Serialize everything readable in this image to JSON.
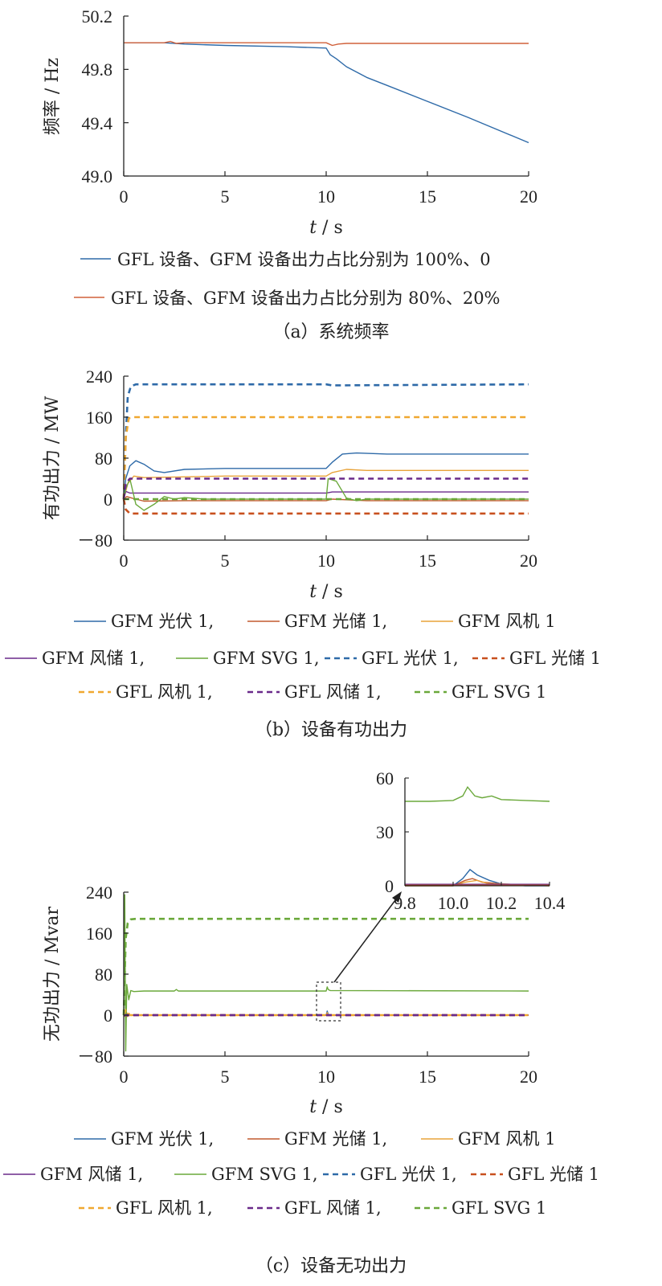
{
  "colors": {
    "gfm_pv": "#2e6aa8",
    "gfm_st": "#c25a2e",
    "gfm_wt": "#e8a33a",
    "gfm_ws": "#6a2a8a",
    "gfm_svg": "#6aa83a",
    "gfl_pv": "#2e6aa8",
    "gfl_st": "#c8501e",
    "gfl_wt": "#f0a830",
    "gfl_ws": "#6a2a8a",
    "gfl_svg": "#6aa83a",
    "fa_blue": "#2e6aa8",
    "fa_red": "#d0603a",
    "axis": "#222222"
  },
  "chart_data": [
    {
      "id": "a",
      "type": "line",
      "caption": "（a）系统频率",
      "xlabel_var": "t",
      "xlabel_unit": " / s",
      "ylabel": "频率 / Hz",
      "xlim": [
        0,
        20
      ],
      "ylim": [
        49.0,
        50.2
      ],
      "xticks": [
        "0",
        "5",
        "10",
        "15",
        "20"
      ],
      "yticks": [
        "49.0",
        "49.4",
        "49.8",
        "50.2"
      ],
      "series": [
        {
          "name": "GFL 设备、GFM 设备出力占比分别为 100%、0",
          "color_key": "fa_blue",
          "dash": false,
          "x": [
            0,
            2,
            3,
            5,
            8,
            10,
            10.2,
            10.5,
            11,
            12,
            13,
            15,
            17,
            20
          ],
          "y": [
            50.0,
            50.0,
            49.99,
            49.98,
            49.97,
            49.96,
            49.91,
            49.88,
            49.82,
            49.74,
            49.68,
            49.56,
            49.44,
            49.25
          ]
        },
        {
          "name": "GFL 设备、GFM 设备出力占比分别为 80%、20%",
          "color_key": "fa_red",
          "dash": false,
          "x": [
            0,
            2,
            2.3,
            2.6,
            3,
            5,
            10,
            10.3,
            10.6,
            11,
            12,
            15,
            20
          ],
          "y": [
            50.0,
            50.0,
            50.01,
            49.995,
            50.0,
            50.0,
            50.0,
            49.98,
            49.99,
            49.995,
            49.995,
            49.995,
            49.995
          ]
        }
      ]
    },
    {
      "id": "b",
      "type": "line",
      "caption": "（b）设备有功出力",
      "xlabel_var": "t",
      "xlabel_unit": " / s",
      "ylabel": "有功出力 / MW",
      "xlim": [
        0,
        20
      ],
      "ylim": [
        -80,
        240
      ],
      "xticks": [
        "0",
        "5",
        "10",
        "15",
        "20"
      ],
      "yticks": [
        "－80",
        "0",
        "80",
        "160",
        "240"
      ],
      "series": [
        {
          "name": "GFM 光伏 1",
          "color_key": "gfm_pv",
          "dash": false,
          "x": [
            0,
            0.1,
            0.3,
            0.6,
            1.0,
            1.5,
            2.0,
            3.0,
            5.0,
            10.0,
            10.3,
            10.8,
            11.5,
            13,
            20
          ],
          "y": [
            0,
            40,
            65,
            75,
            68,
            55,
            52,
            58,
            60,
            60,
            72,
            88,
            90,
            88,
            88
          ]
        },
        {
          "name": "GFM 光储 1",
          "color_key": "gfm_st",
          "dash": false,
          "x": [
            0,
            0.15,
            0.4,
            1,
            3,
            10,
            10.3,
            12,
            20
          ],
          "y": [
            0,
            5,
            2,
            -4,
            -3,
            -3,
            0,
            -3,
            -3
          ]
        },
        {
          "name": "GFM 风机 1",
          "color_key": "gfm_wt",
          "dash": false,
          "x": [
            0,
            0.2,
            0.5,
            1,
            5,
            10,
            10.3,
            11,
            12,
            20
          ],
          "y": [
            0,
            30,
            45,
            42,
            45,
            45,
            52,
            58,
            56,
            56
          ]
        },
        {
          "name": "GFM 风储 1",
          "color_key": "gfm_ws",
          "dash": false,
          "x": [
            0,
            0.1,
            0.3,
            1,
            10,
            10.3,
            20
          ],
          "y": [
            0,
            15,
            12,
            12,
            12,
            14,
            14
          ]
        },
        {
          "name": "GFM SVG 1",
          "color_key": "gfm_svg",
          "dash": false,
          "x": [
            0,
            0.1,
            0.3,
            0.6,
            1.0,
            1.5,
            2.0,
            2.5,
            3.0,
            4.0,
            10.0,
            10.1,
            10.5,
            11.0,
            11.5,
            12.0,
            20
          ],
          "y": [
            0,
            20,
            40,
            -10,
            -22,
            -10,
            5,
            0,
            3,
            0,
            0,
            40,
            35,
            2,
            -3,
            0,
            0
          ]
        },
        {
          "name": "GFL 光伏 1",
          "color_key": "gfl_pv",
          "dash": true,
          "x": [
            0,
            0.1,
            0.2,
            0.35,
            0.6,
            10,
            10.3,
            20
          ],
          "y": [
            0,
            120,
            200,
            220,
            224,
            224,
            222,
            224
          ]
        },
        {
          "name": "GFL 光储 1",
          "color_key": "gfl_st",
          "dash": true,
          "x": [
            0,
            0.1,
            0.3,
            1,
            20
          ],
          "y": [
            0,
            -20,
            -28,
            -28,
            -28
          ]
        },
        {
          "name": "GFL 风机 1",
          "color_key": "gfl_wt",
          "dash": true,
          "x": [
            0,
            0.1,
            0.25,
            0.5,
            20
          ],
          "y": [
            0,
            120,
            158,
            160,
            160
          ]
        },
        {
          "name": "GFL 风储 1",
          "color_key": "gfl_ws",
          "dash": true,
          "x": [
            0,
            0.1,
            0.3,
            1,
            20
          ],
          "y": [
            0,
            30,
            40,
            40,
            40
          ]
        },
        {
          "name": "GFL SVG 1",
          "color_key": "gfl_svg",
          "dash": true,
          "x": [
            0,
            0.2,
            1,
            20
          ],
          "y": [
            0,
            0,
            0,
            0
          ]
        }
      ]
    },
    {
      "id": "c",
      "type": "line",
      "caption": "（c）设备无功出力",
      "xlabel_var": "t",
      "xlabel_unit": " / s",
      "ylabel": "无功出力 / Mvar",
      "xlim": [
        0,
        20
      ],
      "ylim": [
        -80,
        240
      ],
      "xticks": [
        "0",
        "5",
        "10",
        "15",
        "20"
      ],
      "yticks": [
        "－80",
        "0",
        "80",
        "160",
        "240"
      ],
      "series": [
        {
          "name": "GFM 光伏 1",
          "color_key": "gfm_pv",
          "dash": false,
          "x": [
            0,
            0.1,
            0.3,
            10.0,
            10.05,
            10.1,
            10.2,
            20
          ],
          "y": [
            0,
            3,
            0,
            0,
            8,
            2,
            0,
            0
          ]
        },
        {
          "name": "GFM 光储 1",
          "color_key": "gfm_st",
          "dash": false,
          "x": [
            0,
            0.1,
            0.3,
            10.0,
            10.05,
            10.1,
            20
          ],
          "y": [
            0,
            -4,
            0,
            0,
            4,
            0,
            0
          ]
        },
        {
          "name": "GFM 风机 1",
          "color_key": "gfm_wt",
          "dash": false,
          "x": [
            0,
            0.1,
            0.3,
            10.0,
            10.05,
            10.1,
            20
          ],
          "y": [
            0,
            6,
            0,
            0,
            5,
            0,
            0
          ]
        },
        {
          "name": "GFM 风储 1",
          "color_key": "gfm_ws",
          "dash": false,
          "x": [
            0,
            0.1,
            0.3,
            20
          ],
          "y": [
            0,
            2,
            0,
            0
          ]
        },
        {
          "name": "GFM SVG 1",
          "color_key": "gfm_svg",
          "dash": false,
          "x": [
            0,
            0.05,
            0.1,
            0.15,
            0.25,
            0.35,
            0.5,
            1.0,
            2.5,
            2.6,
            2.7,
            10.0,
            10.05,
            10.1,
            10.2,
            20
          ],
          "y": [
            0,
            235,
            -70,
            60,
            30,
            48,
            46,
            47,
            47,
            50,
            47,
            47,
            55,
            50,
            48,
            47
          ]
        },
        {
          "name": "GFL 光伏 1",
          "color_key": "gfl_pv",
          "dash": true,
          "x": [
            0,
            20
          ],
          "y": [
            0,
            0
          ]
        },
        {
          "name": "GFL 光储 1",
          "color_key": "gfl_st",
          "dash": true,
          "x": [
            0,
            20
          ],
          "y": [
            0,
            0
          ]
        },
        {
          "name": "GFL 风机 1",
          "color_key": "gfl_wt",
          "dash": true,
          "x": [
            0,
            0.1,
            0.3,
            20
          ],
          "y": [
            0,
            10,
            0,
            0
          ]
        },
        {
          "name": "GFL 风储 1",
          "color_key": "gfl_ws",
          "dash": true,
          "x": [
            0,
            20
          ],
          "y": [
            0,
            0
          ]
        },
        {
          "name": "GFL SVG 1",
          "color_key": "gfl_svg",
          "dash": true,
          "x": [
            0,
            0.1,
            0.2,
            0.35,
            0.6,
            20
          ],
          "y": [
            0,
            150,
            180,
            187,
            188,
            188
          ]
        }
      ],
      "inset": {
        "xlim": [
          9.8,
          10.4
        ],
        "ylim": [
          0,
          60
        ],
        "xticks": [
          "9.8",
          "10.0",
          "10.2",
          "10.4"
        ],
        "yticks": [
          "0",
          "30",
          "60"
        ],
        "series": [
          {
            "color_key": "gfm_svg",
            "x": [
              9.8,
              9.9,
              10.0,
              10.04,
              10.06,
              10.09,
              10.12,
              10.16,
              10.2,
              10.3,
              10.4
            ],
            "y": [
              47,
              47,
              47.5,
              50,
              55,
              50,
              49,
              50,
              48,
              47.5,
              47
            ]
          },
          {
            "color_key": "gfm_pv",
            "x": [
              9.8,
              10.0,
              10.04,
              10.07,
              10.1,
              10.15,
              10.2,
              10.3,
              10.4
            ],
            "y": [
              0,
              0,
              4,
              9,
              6,
              3,
              1,
              0,
              0
            ]
          },
          {
            "color_key": "gfm_st",
            "x": [
              9.8,
              10.0,
              10.05,
              10.08,
              10.12,
              10.2,
              10.4
            ],
            "y": [
              0,
              0,
              3,
              4,
              2,
              1,
              0
            ]
          },
          {
            "color_key": "gfm_wt",
            "x": [
              9.8,
              10.0,
              10.05,
              10.1,
              10.15,
              10.2,
              10.4
            ],
            "y": [
              0,
              0,
              2,
              3,
              1,
              1,
              0
            ]
          },
          {
            "color_key": "gfm_ws",
            "x": [
              9.8,
              10.4
            ],
            "y": [
              0.8,
              0.8
            ]
          },
          {
            "color_key": "gfl_st",
            "x": [
              9.8,
              10.4
            ],
            "y": [
              0.3,
              0.3
            ]
          }
        ]
      }
    }
  ]
}
